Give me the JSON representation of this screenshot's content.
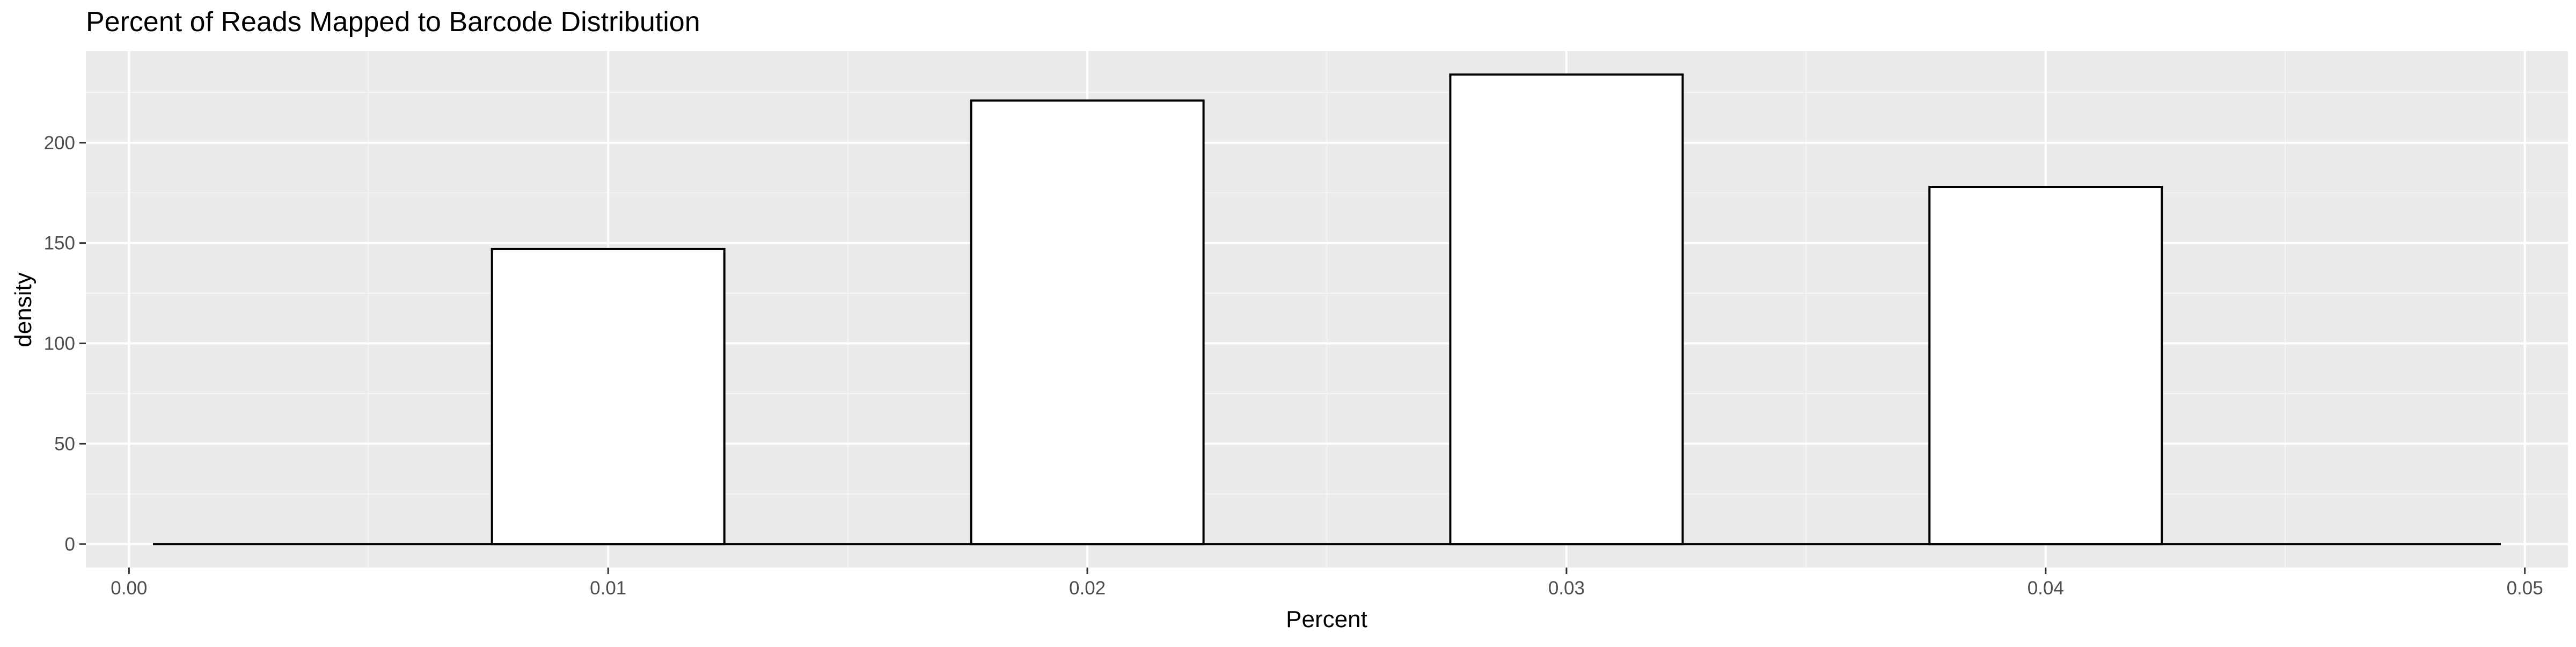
{
  "chart_data": {
    "type": "bar",
    "subtype": "histogram",
    "title": "Percent of Reads Mapped to Barcode Distribution",
    "xlabel": "Percent",
    "ylabel": "density",
    "xlim": [
      -0.0009,
      0.0509
    ],
    "ylim": [
      -11.7,
      245.7
    ],
    "x_ticks": [
      0.0,
      0.01,
      0.02,
      0.03,
      0.04,
      0.05
    ],
    "x_tick_labels": [
      "0.00",
      "0.01",
      "0.02",
      "0.03",
      "0.04",
      "0.05"
    ],
    "y_ticks": [
      0,
      50,
      100,
      150,
      200
    ],
    "y_tick_labels": [
      "0",
      "50",
      "100",
      "150",
      "200"
    ],
    "bin_range": [
      0.0005,
      0.0495
    ],
    "bin_width": 0.001,
    "bins": [
      {
        "center": 0.01,
        "density": 147
      },
      {
        "center": 0.02,
        "density": 221
      },
      {
        "center": 0.03,
        "density": 234
      },
      {
        "center": 0.04,
        "density": 178
      }
    ],
    "grid": true,
    "legend": "none",
    "colors": {
      "panel_background": "#ebebeb",
      "grid_major": "#ffffff",
      "grid_minor": "#f5f5f5",
      "bar_fill": "#ffffff",
      "bar_outline": "#000000",
      "tick_label": "#4d4d4d",
      "tick_mark": "#333333",
      "text": "#000000"
    }
  }
}
